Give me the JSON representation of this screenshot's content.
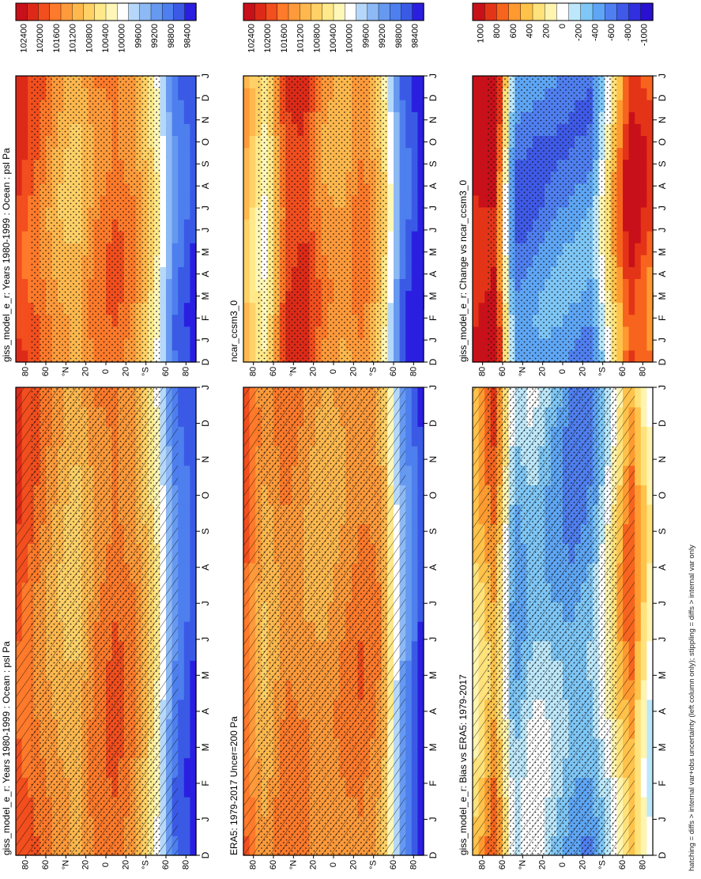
{
  "figure": {
    "footnote": "hatching = diffs > internal var+obs uncertainty (left column only); stippling = diffs > internal var only"
  },
  "colors": {
    "abs_ramp": [
      "#2a1fe0",
      "#3a5ae6",
      "#4e7fee",
      "#6699f0",
      "#8db9f5",
      "#b5d8fa",
      "#ffffff",
      "#fff7b8",
      "#ffe98a",
      "#ffd166",
      "#ffb84d",
      "#ff9a3a",
      "#ff7a2a",
      "#f24e1e",
      "#dd2a18",
      "#c8101a"
    ],
    "diff_ramp": [
      "#2a10d0",
      "#3030e0",
      "#3f5ae8",
      "#4f7ff0",
      "#5ea6f5",
      "#7ec7f7",
      "#bde8fb",
      "#ffffff",
      "#fff4b0",
      "#ffe27a",
      "#ffc24a",
      "#ff9a30",
      "#f7641e",
      "#e43418",
      "#c8101a"
    ]
  },
  "chart_data": [
    {
      "id": "p1",
      "type": "heatmap",
      "title": "giss_model_e_r: Years 1980-1999 : Ocean : psl Pa",
      "x_ticks": [
        "D",
        "J",
        "F",
        "M",
        "A",
        "M",
        "J",
        "J",
        "A",
        "S",
        "O",
        "N",
        "D",
        "J"
      ],
      "y_ticks": [
        "80",
        "60",
        "°N",
        "20",
        "0",
        "20",
        "°S",
        "60",
        "80"
      ],
      "y_values": [
        80,
        60,
        40,
        20,
        0,
        -20,
        -40,
        -60,
        -80
      ],
      "colorbar_labels": [
        "102400",
        "102000",
        "101600",
        "101200",
        "100800",
        "100400",
        "100000",
        "99600",
        "99200",
        "98800",
        "98400"
      ],
      "scale": "abs",
      "hatching": true,
      "stippling": true,
      "lat_profile": [
        101800,
        101500,
        101100,
        100900,
        101400,
        101600,
        101300,
        100500,
        99100,
        98700
      ]
    },
    {
      "id": "p2",
      "type": "heatmap",
      "title": "giss_model_e_r: Years 1980-1999 : Ocean : psl Pa",
      "x_ticks": [
        "D",
        "J",
        "F",
        "M",
        "A",
        "M",
        "J",
        "J",
        "A",
        "S",
        "O",
        "N",
        "D",
        "J"
      ],
      "y_ticks": [
        "80",
        "60",
        "°N",
        "20",
        "0",
        "20",
        "°S",
        "60",
        "80"
      ],
      "y_values": [
        80,
        60,
        40,
        20,
        0,
        -20,
        -40,
        -60,
        -80
      ],
      "colorbar_labels": [
        "102400",
        "102000",
        "101600",
        "101200",
        "100800",
        "100400",
        "100000",
        "99600",
        "99200",
        "98800",
        "98400"
      ],
      "scale": "abs",
      "hatching": false,
      "stippling": true,
      "lat_profile": [
        101900,
        101600,
        101100,
        100900,
        101400,
        101600,
        101300,
        100500,
        99100,
        98700
      ]
    },
    {
      "id": "p3",
      "type": "heatmap",
      "title": "ERA5: 1979-2017 Uncer=200 Pa",
      "x_ticks": [
        "D",
        "J",
        "F",
        "M",
        "A",
        "M",
        "J",
        "J",
        "A",
        "S",
        "O",
        "N",
        "D",
        "J"
      ],
      "y_ticks": [
        "80",
        "60",
        "°N",
        "20",
        "0",
        "20",
        "°S",
        "60",
        "80"
      ],
      "y_values": [
        80,
        60,
        40,
        20,
        0,
        -20,
        -40,
        -60,
        -80
      ],
      "colorbar_labels": [
        "102400",
        "102000",
        "101600",
        "101200",
        "100800",
        "100400",
        "100000",
        "99600",
        "99200",
        "98800",
        "98400"
      ],
      "scale": "abs",
      "hatching": true,
      "stippling": true,
      "lat_profile": [
        101600,
        101000,
        101500,
        101300,
        101100,
        101300,
        101500,
        101200,
        99400,
        98600
      ]
    },
    {
      "id": "p4",
      "type": "heatmap",
      "title": "ncar_ccsm3_0",
      "x_ticks": [
        "D",
        "J",
        "F",
        "M",
        "A",
        "M",
        "J",
        "J",
        "A",
        "S",
        "O",
        "N",
        "D",
        "J"
      ],
      "y_ticks": [
        "80",
        "60",
        "°N",
        "20",
        "0",
        "20",
        "°S",
        "60",
        "80"
      ],
      "y_values": [
        80,
        60,
        40,
        20,
        0,
        -20,
        -40,
        -60,
        -80
      ],
      "colorbar_labels": [
        "102400",
        "102000",
        "101600",
        "101200",
        "100800",
        "100400",
        "100000",
        "99600",
        "99200",
        "98800",
        "98400"
      ],
      "scale": "abs",
      "hatching": false,
      "stippling": true,
      "lat_profile": [
        101000,
        100200,
        101800,
        102000,
        101300,
        101100,
        101500,
        100800,
        99000,
        98400
      ]
    },
    {
      "id": "p5",
      "type": "heatmap",
      "title": "giss_model_e_r: Bias vs ERA5: 1979-2017",
      "x_ticks": [
        "D",
        "J",
        "F",
        "M",
        "A",
        "M",
        "J",
        "J",
        "A",
        "S",
        "O",
        "N",
        "D",
        "J"
      ],
      "y_ticks": [
        "80",
        "60",
        "°N",
        "20",
        "0",
        "20",
        "°S",
        "60",
        "80"
      ],
      "y_values": [
        80,
        60,
        40,
        20,
        0,
        -20,
        -40,
        -60,
        -80
      ],
      "colorbar_labels": [
        "1000",
        "800",
        "600",
        "400",
        "200",
        "0",
        "-200",
        "-400",
        "-600",
        "-800",
        "-1000"
      ],
      "scale": "diff",
      "hatching": true,
      "stippling": true,
      "lat_profile": [
        300,
        600,
        -300,
        -100,
        -250,
        -400,
        -350,
        100,
        600,
        50
      ]
    },
    {
      "id": "p6",
      "type": "heatmap",
      "title": "giss_model_e_r: Change vs ncar_ccsm3_0",
      "x_ticks": [
        "D",
        "J",
        "F",
        "M",
        "A",
        "M",
        "J",
        "J",
        "A",
        "S",
        "O",
        "N",
        "D",
        "J"
      ],
      "y_ticks": [
        "80",
        "60",
        "°N",
        "20",
        "0",
        "20",
        "°S",
        "60",
        "80"
      ],
      "y_values": [
        80,
        60,
        40,
        20,
        0,
        -20,
        -40,
        -60,
        -80
      ],
      "colorbar_labels": [
        "1000",
        "800",
        "600",
        "400",
        "200",
        "0",
        "-200",
        "-400",
        "-600",
        "-800",
        "-1000"
      ],
      "scale": "diff",
      "hatching": false,
      "stippling": true,
      "lat_profile": [
        900,
        1000,
        -500,
        -500,
        -450,
        -450,
        -450,
        300,
        900,
        700
      ]
    }
  ]
}
